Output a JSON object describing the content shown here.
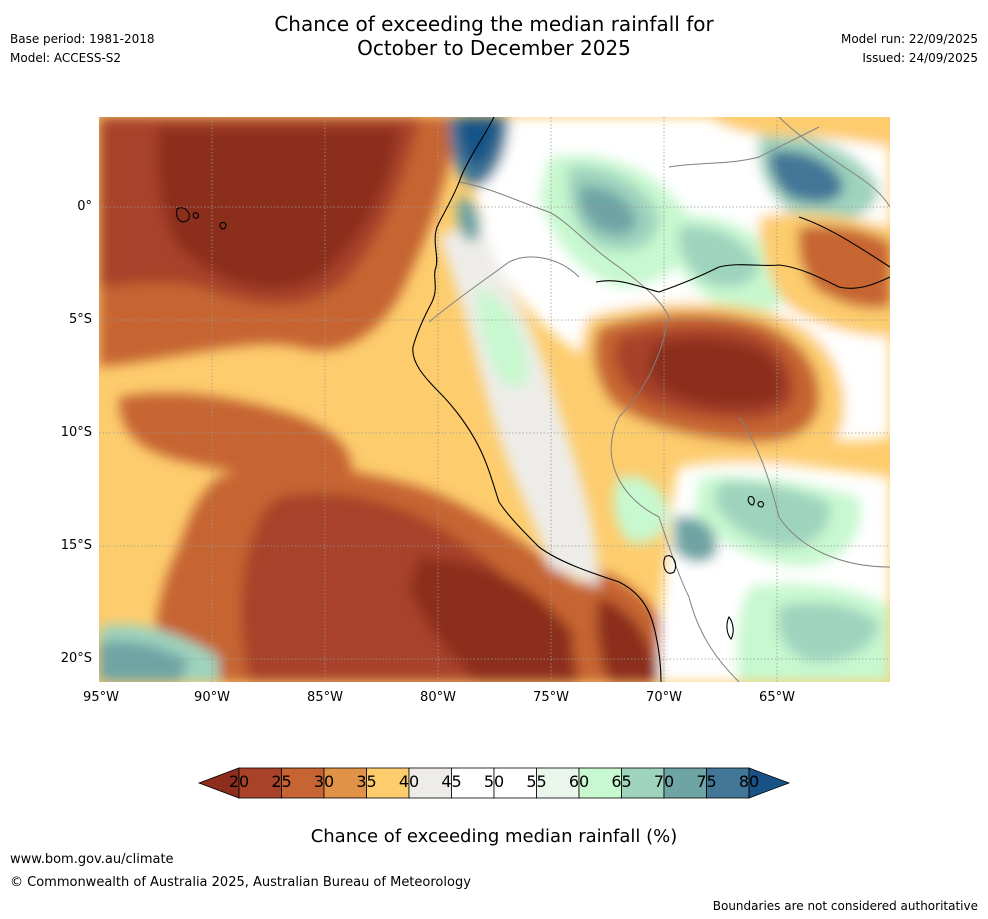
{
  "title": {
    "line1": "Chance of exceeding the median rainfall for",
    "line2": "October to December 2025"
  },
  "meta": {
    "base_period": "Base period: 1981-2018",
    "model": "Model: ACCESS-S2",
    "model_run": "Model run: 22/09/2025",
    "issued": "Issued: 24/09/2025"
  },
  "map": {
    "lat_labels": [
      "0°",
      "5°S",
      "10°S",
      "15°S",
      "20°S"
    ],
    "lon_labels": [
      "95°W",
      "90°W",
      "85°W",
      "80°W",
      "75°W",
      "70°W",
      "65°W"
    ]
  },
  "colorbar": {
    "ticks": [
      "20",
      "25",
      "30",
      "35",
      "40",
      "45",
      "50",
      "55",
      "60",
      "65",
      "70",
      "75",
      "80"
    ],
    "colors": [
      "#8c2d1e",
      "#a8432a",
      "#c66533",
      "#e09246",
      "#fdcc6d",
      "#eeece8",
      "#ffffff",
      "#ffffff",
      "#eaf5ec",
      "#c7f8cf",
      "#9ed3be",
      "#6ea4a4",
      "#427797",
      "#195287"
    ],
    "title": "Chance of exceeding median rainfall (%)"
  },
  "footer": {
    "url": "www.bom.gov.au/climate",
    "copyright": "© Commonwealth of Australia 2025, Australian Bureau of Meteorology",
    "disclaimer": "Boundaries are not considered authoritative"
  }
}
